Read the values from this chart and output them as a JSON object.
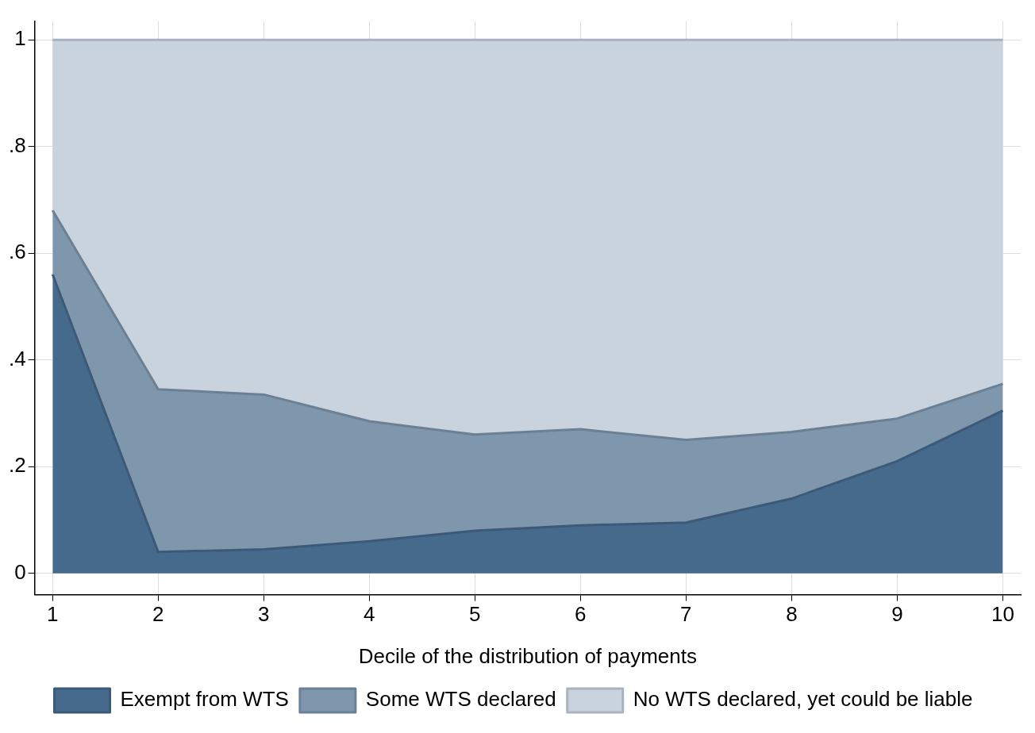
{
  "chart_data": {
    "type": "area",
    "stacked": true,
    "xlabel": "Decile of the distribution of payments",
    "x": [
      1,
      2,
      3,
      4,
      5,
      6,
      7,
      8,
      9,
      10
    ],
    "series": [
      {
        "name": "Exempt from WTS",
        "color": "#466a8c",
        "values": [
          0.56,
          0.04,
          0.045,
          0.06,
          0.08,
          0.09,
          0.095,
          0.14,
          0.21,
          0.305
        ]
      },
      {
        "name": "Some WTS declared",
        "color": "#7f97ad",
        "values": [
          0.12,
          0.305,
          0.29,
          0.225,
          0.18,
          0.18,
          0.155,
          0.125,
          0.08,
          0.05
        ]
      },
      {
        "name": "No WTS declared, yet could be liable",
        "color": "#c8d3de",
        "values": [
          0.32,
          0.655,
          0.665,
          0.715,
          0.74,
          0.73,
          0.75,
          0.735,
          0.71,
          0.645
        ]
      }
    ],
    "xlim": [
      0.83,
      10.17
    ],
    "xticks": [
      1,
      2,
      3,
      4,
      5,
      6,
      7,
      8,
      9,
      10
    ],
    "ylim": [
      -0.04,
      1.035
    ],
    "yticks": [
      0,
      {
        "value": 0.2,
        "label": ".2"
      },
      {
        "value": 0.4,
        "label": ".4"
      },
      {
        "value": 0.6,
        "label": ".6"
      },
      {
        "value": 0.8,
        "label": ".8"
      },
      1
    ],
    "grid": true,
    "legend": "bottom"
  }
}
